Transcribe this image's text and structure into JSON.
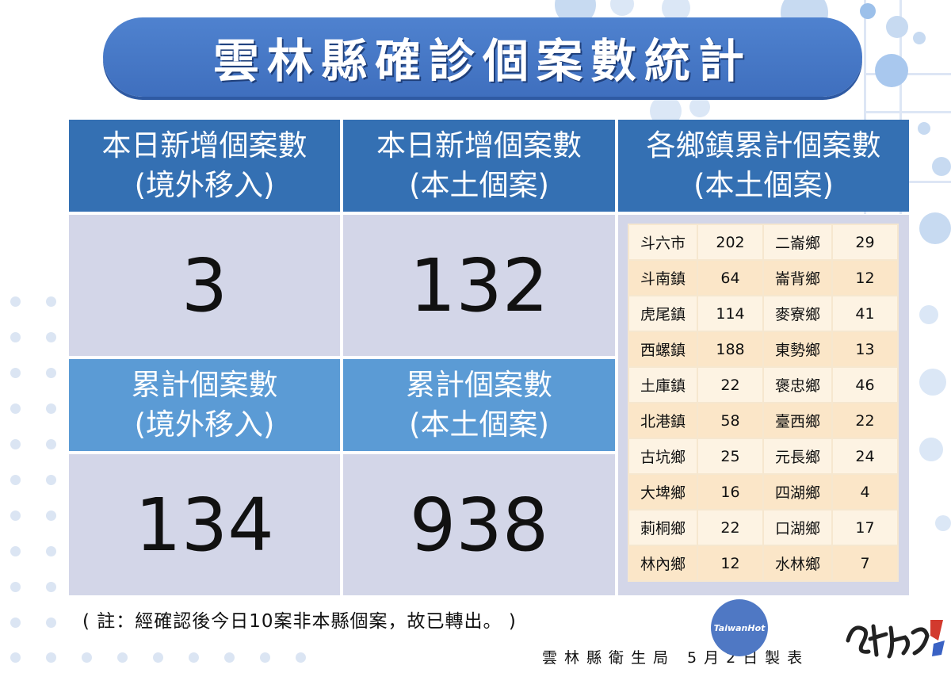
{
  "title": "雲林縣確診個案數統計",
  "headers": {
    "new_imported": [
      "本日新增個案數",
      "(境外移入)"
    ],
    "new_local": [
      "本日新增個案數",
      "(本土個案)"
    ],
    "towns": [
      "各鄉鎮累計個案數",
      "(本土個案)"
    ],
    "total_imported": [
      "累計個案數",
      "(境外移入)"
    ],
    "total_local": [
      "累計個案數",
      "(本土個案)"
    ]
  },
  "values": {
    "new_imported": "3",
    "new_local": "132",
    "total_imported": "134",
    "total_local": "938"
  },
  "towns": [
    [
      "斗六市",
      "202",
      "二崙鄉",
      "29"
    ],
    [
      "斗南鎮",
      "64",
      "崙背鄉",
      "12"
    ],
    [
      "虎尾鎮",
      "114",
      "麥寮鄉",
      "41"
    ],
    [
      "西螺鎮",
      "188",
      "東勢鄉",
      "13"
    ],
    [
      "土庫鎮",
      "22",
      "褒忠鄉",
      "46"
    ],
    [
      "北港鎮",
      "58",
      "臺西鄉",
      "22"
    ],
    [
      "古坑鄉",
      "25",
      "元長鄉",
      "24"
    ],
    [
      "大埤鄉",
      "16",
      "四湖鄉",
      "4"
    ],
    [
      "莿桐鄉",
      "22",
      "口湖鄉",
      "17"
    ],
    [
      "林內鄉",
      "12",
      "水林鄉",
      "7"
    ]
  ],
  "note": "( 註：經確認後今日10案非本縣個案，故已轉出。 )",
  "footer": "雲林縣衛生局  5月2日製表",
  "logo": {
    "left_text": "TaiwanHot",
    "icon": "taiwanhot-logo",
    "right_icon": "yunlin-logo"
  },
  "colors": {
    "banner": "#4f82cf",
    "header_dark": "#3470b3",
    "header_light": "#5b9bd5",
    "value_bg": "#d3d6e8",
    "table_bg": "#fdf3e3"
  }
}
